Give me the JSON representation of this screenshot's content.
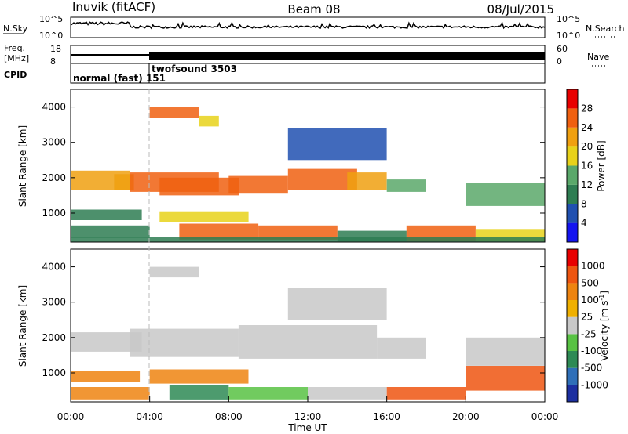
{
  "header": {
    "station": "Inuvik (fitACF)",
    "beam": "Beam 08",
    "date": "08/Jul/2015"
  },
  "panels": {
    "noise": {
      "left_label": "N.Sky",
      "right_label": "N.Search",
      "left_ticks": [
        "10^5",
        "10^0"
      ],
      "right_ticks": [
        "10^5",
        "10^0"
      ]
    },
    "freq": {
      "left_label_line1": "Freq.",
      "left_label_line2": "[MHz]",
      "right_label": "Nave",
      "left_ticks": [
        "18",
        "8"
      ],
      "right_ticks": [
        "60",
        "0"
      ]
    },
    "cpid": {
      "label": "CPID",
      "segments": [
        {
          "text": "normal (fast) 151",
          "start_hour": 0,
          "end_hour": 4
        },
        {
          "text": "twofsound 3503",
          "start_hour": 4,
          "end_hour": 24
        }
      ]
    }
  },
  "colors": {
    "power": [
      "#1414f0",
      "#2050b0",
      "#2e7d52",
      "#5aa86a",
      "#e8d21a",
      "#f0a010",
      "#f06010",
      "#e80000"
    ],
    "velocity": [
      "#1c2fa0",
      "#2f6fb8",
      "#2e8a55",
      "#58c243",
      "#c8c8c8",
      "#f0b000",
      "#ee8410",
      "#ee5510",
      "#e80000"
    ]
  },
  "chart_data": [
    {
      "type": "heatmap",
      "title": "",
      "xlabel": "Time UT",
      "ylabel": "Slant Range [km]",
      "xlim": [
        0,
        24
      ],
      "ylim": [
        180,
        4500
      ],
      "x_ticks": [
        "00:00",
        "04:00",
        "08:00",
        "12:00",
        "16:00",
        "20:00",
        "00:00"
      ],
      "y_ticks": [
        1000,
        2000,
        3000,
        4000
      ],
      "colorbar": {
        "label": "Power [dB]",
        "ticks": [
          4,
          8,
          12,
          16,
          20,
          24,
          28
        ],
        "range": [
          0,
          32
        ]
      },
      "regions": [
        {
          "t0": 0.0,
          "t1": 3.0,
          "r0": 1650,
          "r1": 2200,
          "level": 22
        },
        {
          "t0": 2.2,
          "t1": 3.2,
          "r0": 1650,
          "r1": 2100,
          "level": 20
        },
        {
          "t0": 3.0,
          "t1": 7.5,
          "r0": 1600,
          "r1": 2150,
          "level": 24
        },
        {
          "t0": 4.5,
          "t1": 8.5,
          "r0": 1500,
          "r1": 2000,
          "level": 26
        },
        {
          "t0": 8.0,
          "t1": 11.0,
          "r0": 1550,
          "r1": 2050,
          "level": 27
        },
        {
          "t0": 11.0,
          "t1": 14.5,
          "r0": 1650,
          "r1": 2250,
          "level": 26
        },
        {
          "t0": 14.0,
          "t1": 16.0,
          "r0": 1650,
          "r1": 2150,
          "level": 20
        },
        {
          "t0": 16.0,
          "t1": 18.0,
          "r0": 1600,
          "r1": 1950,
          "level": 12
        },
        {
          "t0": 20.0,
          "t1": 24.0,
          "r0": 1200,
          "r1": 1850,
          "level": 14
        },
        {
          "t0": 0.0,
          "t1": 3.6,
          "r0": 800,
          "r1": 1100,
          "level": 9
        },
        {
          "t0": 0.0,
          "t1": 4.0,
          "r0": 300,
          "r1": 650,
          "level": 11
        },
        {
          "t0": 4.5,
          "t1": 9.0,
          "r0": 750,
          "r1": 1050,
          "level": 18
        },
        {
          "t0": 5.5,
          "t1": 9.5,
          "r0": 250,
          "r1": 700,
          "level": 26
        },
        {
          "t0": 9.5,
          "t1": 13.5,
          "r0": 250,
          "r1": 650,
          "level": 24
        },
        {
          "t0": 13.5,
          "t1": 17.0,
          "r0": 200,
          "r1": 500,
          "level": 10
        },
        {
          "t0": 17.0,
          "t1": 20.5,
          "r0": 200,
          "r1": 650,
          "level": 27
        },
        {
          "t0": 20.5,
          "t1": 24.0,
          "r0": 200,
          "r1": 550,
          "level": 18
        },
        {
          "t0": 4.0,
          "t1": 6.5,
          "r0": 3700,
          "r1": 4000,
          "level": 24
        },
        {
          "t0": 6.5,
          "t1": 7.5,
          "r0": 3450,
          "r1": 3750,
          "level": 18
        },
        {
          "t0": 11.0,
          "t1": 16.0,
          "r0": 2500,
          "r1": 3400,
          "level": 6
        },
        {
          "t0": 0.0,
          "t1": 24.0,
          "r0": 180,
          "r1": 320,
          "level": 8
        }
      ]
    },
    {
      "type": "heatmap",
      "title": "",
      "xlabel": "Time UT",
      "ylabel": "Slant Range [km]",
      "xlim": [
        0,
        24
      ],
      "ylim": [
        180,
        4500
      ],
      "x_ticks": [
        "00:00",
        "04:00",
        "08:00",
        "12:00",
        "16:00",
        "20:00",
        "00:00"
      ],
      "y_ticks": [
        1000,
        2000,
        3000,
        4000
      ],
      "colorbar": {
        "label": "Velocity [m s^-1]",
        "ticks": [
          "1000",
          "500",
          "100",
          "25",
          "-25",
          "-100",
          "-500",
          "-1000"
        ]
      },
      "regions": [
        {
          "t0": 0.0,
          "t1": 3.6,
          "r0": 1600,
          "r1": 2150,
          "level": 4
        },
        {
          "t0": 3.0,
          "t1": 8.5,
          "r0": 1450,
          "r1": 2250,
          "level": 4
        },
        {
          "t0": 8.5,
          "t1": 15.5,
          "r0": 1400,
          "r1": 2350,
          "level": 4
        },
        {
          "t0": 15.5,
          "t1": 18.0,
          "r0": 1400,
          "r1": 2000,
          "level": 4
        },
        {
          "t0": 20.0,
          "t1": 24.0,
          "r0": 1200,
          "r1": 2000,
          "level": 4
        },
        {
          "t0": 0.0,
          "t1": 3.5,
          "r0": 750,
          "r1": 1050,
          "level": 6
        },
        {
          "t0": 0.0,
          "t1": 4.0,
          "r0": 250,
          "r1": 600,
          "level": 6
        },
        {
          "t0": 4.0,
          "t1": 9.0,
          "r0": 700,
          "r1": 1100,
          "level": 6
        },
        {
          "t0": 5.0,
          "t1": 8.0,
          "r0": 250,
          "r1": 650,
          "level": 2
        },
        {
          "t0": 8.0,
          "t1": 12.0,
          "r0": 250,
          "r1": 600,
          "level": 3
        },
        {
          "t0": 12.0,
          "t1": 16.0,
          "r0": 250,
          "r1": 600,
          "level": 4
        },
        {
          "t0": 16.0,
          "t1": 20.0,
          "r0": 250,
          "r1": 600,
          "level": 7
        },
        {
          "t0": 20.0,
          "t1": 24.0,
          "r0": 500,
          "r1": 1200,
          "level": 7
        },
        {
          "t0": 4.0,
          "t1": 6.5,
          "r0": 3700,
          "r1": 4000,
          "level": 4
        },
        {
          "t0": 11.0,
          "t1": 16.0,
          "r0": 2500,
          "r1": 3400,
          "level": 4
        }
      ]
    }
  ]
}
